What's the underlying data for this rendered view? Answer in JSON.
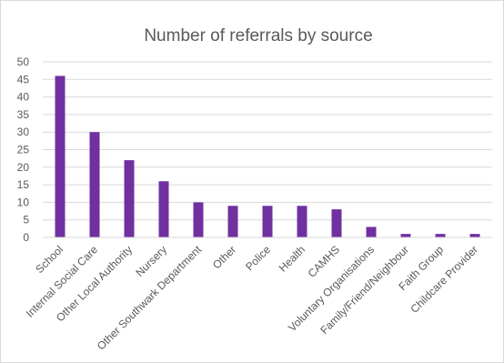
{
  "chart_data": {
    "type": "bar",
    "title": "Number of referrals by source",
    "categories": [
      "School",
      "Internal Social Care",
      "Other Local Authority",
      "Nursery",
      "Other Southwark Department",
      "Other",
      "Police",
      "Health",
      "CAMHS",
      "Voluntary Organisations",
      "Family/Friend/Neighbour",
      "Faith Group",
      "Childcare Provider"
    ],
    "values": [
      46,
      30,
      22,
      16,
      10,
      9,
      9,
      9,
      8,
      3,
      1,
      1,
      1
    ],
    "ylim": [
      0,
      50
    ],
    "yticks": [
      0,
      5,
      10,
      15,
      20,
      25,
      30,
      35,
      40,
      45,
      50
    ],
    "grid": true,
    "legend": "none",
    "bar_color": "#7030a0",
    "grid_color": "#d9d9d9"
  }
}
